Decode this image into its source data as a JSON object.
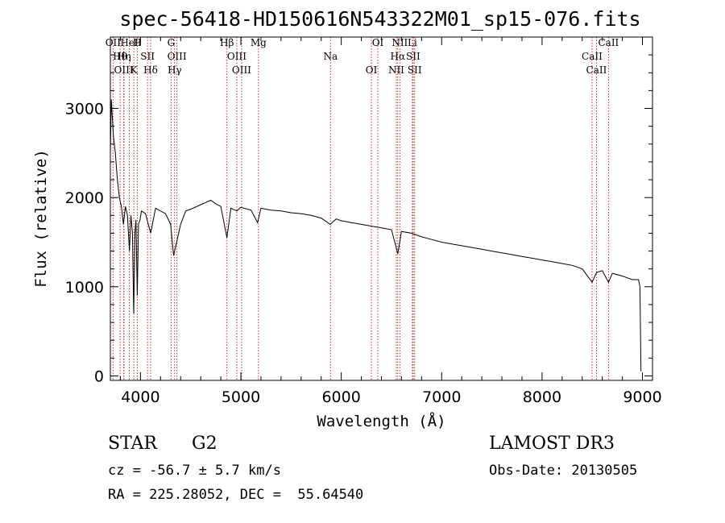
{
  "chart_data": {
    "type": "line",
    "title": "spec-56418-HD150616N543322M01_sp15-076.fits",
    "xlabel": "Wavelength (Å)",
    "ylabel": "Flux (relative)",
    "xlim": [
      3700,
      9100
    ],
    "ylim": [
      -50,
      3800
    ],
    "x_ticks": [
      4000,
      5000,
      6000,
      7000,
      8000,
      9000
    ],
    "x_tick_labels": [
      "4000",
      "5000",
      "6000",
      "7000",
      "8000",
      "9000"
    ],
    "y_ticks": [
      0,
      1000,
      2000,
      3000
    ],
    "y_tick_labels": [
      "0",
      "1000",
      "2000",
      "3000"
    ],
    "series": [
      {
        "name": "spectrum",
        "x": [
          3700,
          3710,
          3730,
          3750,
          3770,
          3790,
          3810,
          3830,
          3850,
          3870,
          3890,
          3905,
          3920,
          3933,
          3945,
          3955,
          3968,
          3980,
          3995,
          4010,
          4050,
          4101,
          4150,
          4200,
          4250,
          4300,
          4330,
          4360,
          4400,
          4450,
          4500,
          4600,
          4700,
          4750,
          4800,
          4861,
          4900,
          4960,
          5000,
          5100,
          5167,
          5200,
          5300,
          5400,
          5500,
          5600,
          5700,
          5800,
          5890,
          5950,
          6000,
          6100,
          6200,
          6300,
          6400,
          6500,
          6563,
          6600,
          6700,
          6800,
          6900,
          7000,
          7100,
          7200,
          7300,
          7400,
          7500,
          7600,
          7700,
          7800,
          7900,
          8000,
          8100,
          8200,
          8300,
          8400,
          8498,
          8542,
          8600,
          8662,
          8700,
          8800,
          8850,
          8900,
          8960,
          8975,
          8985
        ],
        "y": [
          2500,
          3100,
          2700,
          2500,
          2200,
          2000,
          1900,
          1700,
          1900,
          1800,
          1400,
          1800,
          1600,
          700,
          1600,
          1750,
          900,
          1700,
          1750,
          1850,
          1820,
          1600,
          1880,
          1850,
          1820,
          1700,
          1350,
          1500,
          1700,
          1850,
          1870,
          1920,
          1970,
          1930,
          1900,
          1550,
          1880,
          1850,
          1890,
          1860,
          1720,
          1880,
          1860,
          1850,
          1830,
          1820,
          1800,
          1770,
          1700,
          1760,
          1740,
          1720,
          1700,
          1680,
          1660,
          1640,
          1370,
          1620,
          1600,
          1560,
          1530,
          1500,
          1480,
          1460,
          1440,
          1420,
          1400,
          1380,
          1360,
          1340,
          1320,
          1300,
          1280,
          1260,
          1240,
          1200,
          1050,
          1160,
          1180,
          1050,
          1150,
          1120,
          1100,
          1080,
          1080,
          1000,
          50
        ]
      }
    ],
    "spectral_lines": [
      {
        "label": "OII",
        "wavelength": 3727
      },
      {
        "label": "Hθ",
        "wavelength": 3797
      },
      {
        "label": "OIII",
        "wavelength": 3833
      },
      {
        "label": "HeI",
        "wavelength": 3889
      },
      {
        "label": "Hη",
        "wavelength": 3835
      },
      {
        "label": "K",
        "wavelength": 3934
      },
      {
        "label": "H",
        "wavelength": 3968
      },
      {
        "label": "SII",
        "wavelength": 4070
      },
      {
        "label": "Hδ",
        "wavelength": 4101
      },
      {
        "label": "G",
        "wavelength": 4305
      },
      {
        "label": "OIII",
        "wavelength": 4363
      },
      {
        "label": "Hγ",
        "wavelength": 4340
      },
      {
        "label": "Hβ",
        "wavelength": 4861
      },
      {
        "label": "OIII",
        "wavelength": 4959
      },
      {
        "label": "OIII",
        "wavelength": 5007
      },
      {
        "label": "Mg",
        "wavelength": 5175
      },
      {
        "label": "Na",
        "wavelength": 5893
      },
      {
        "label": "OI",
        "wavelength": 6300
      },
      {
        "label": "OI",
        "wavelength": 6364
      },
      {
        "label": "Hα",
        "wavelength": 6563
      },
      {
        "label": "NII",
        "wavelength": 6548
      },
      {
        "label": "NII",
        "wavelength": 6583
      },
      {
        "label": "SII",
        "wavelength": 6716
      },
      {
        "label": "SII",
        "wavelength": 6731
      },
      {
        "label": "Li",
        "wavelength": 6708
      },
      {
        "label": "CaII",
        "wavelength": 8498
      },
      {
        "label": "CaII",
        "wavelength": 8542
      },
      {
        "label": "CaII",
        "wavelength": 8662
      }
    ]
  },
  "info": {
    "object_class": "STAR",
    "subclass": "G2",
    "survey": "LAMOST DR3",
    "redshift": "cz = -56.7 ± 5.7 km/s",
    "obs_date": "Obs-Date: 20130505",
    "coords": "RA = 225.28052, DEC =  55.64540"
  },
  "colors": {
    "line_marker": "#b22222",
    "spectrum": "#000000",
    "axis": "#000000"
  }
}
